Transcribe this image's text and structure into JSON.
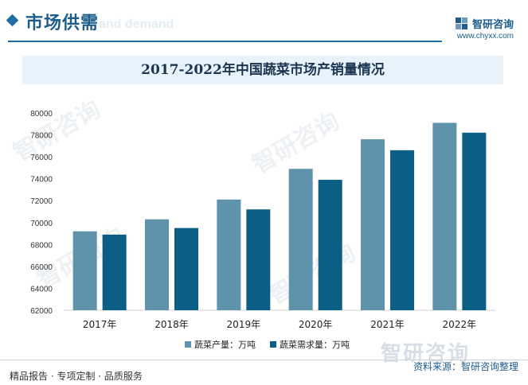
{
  "header": {
    "section_title": "市场供需",
    "section_subtitle": "and demand",
    "brand_name": "智研咨询",
    "brand_url": "www.chyxx.com"
  },
  "banner": {
    "title": "2017-2022年中国蔬菜市场产销量情况"
  },
  "watermark": {
    "text": "智研咨询",
    "footer_text": "智研咨询"
  },
  "chart_data": {
    "type": "bar",
    "title": "2017-2022年中国蔬菜市场产销量情况",
    "categories": [
      "2017年",
      "2018年",
      "2019年",
      "2020年",
      "2021年",
      "2022年"
    ],
    "series": [
      {
        "name": "蔬菜产量：万吨",
        "color": "#5f93ab",
        "values": [
          69200,
          70300,
          72100,
          74900,
          77600,
          79100
        ]
      },
      {
        "name": "蔬菜需求量：万吨",
        "color": "#0b5f85",
        "values": [
          68900,
          69500,
          71200,
          73900,
          76600,
          78200
        ]
      }
    ],
    "yticks": [
      62000,
      64000,
      66000,
      68000,
      70000,
      72000,
      74000,
      76000,
      78000,
      80000
    ],
    "ylim": [
      62000,
      80000
    ],
    "grid": false,
    "legend": "bottom"
  },
  "footer": {
    "left": "精品报告 · 专项定制 · 品质服务",
    "right": "资料来源：智研咨询整理"
  }
}
